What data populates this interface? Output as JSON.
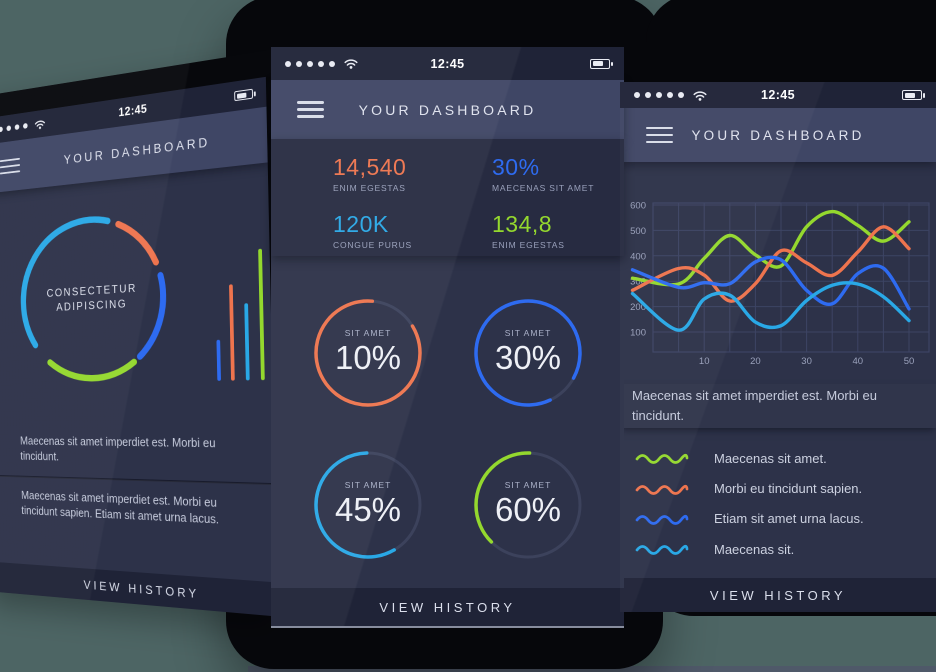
{
  "scene": {
    "description": "Three mobile dashboard app mockups on teal backdrop"
  },
  "colors": {
    "background_teal": "#4d6564",
    "floor_strip": "#4f5969",
    "phone_black": "#06070b",
    "screen_navy": "#2d3249",
    "bar_dark": "#1f2337",
    "header_slate": "#3f4665",
    "accent_orange": "#ee744e",
    "accent_blue": "#2e6bf0",
    "accent_cyan": "#29a8e6",
    "accent_green": "#94d82e"
  },
  "icons": {
    "status_bar": [
      "carrier-dots",
      "wifi-icon",
      "battery-icon"
    ],
    "nav": "hamburger-menu-icon",
    "legend_swatch": "wavy-line"
  },
  "left_phone": {
    "status": {
      "time": "12:45"
    },
    "header": {
      "title": "YOUR DASHBOARD"
    },
    "donut": {
      "line1": "CONSECTETUR",
      "line2": "ADIPISCING",
      "segments": [
        {
          "color": "#29a8e6",
          "start": 146,
          "end": 285
        },
        {
          "color": "#ee744e",
          "start": 294,
          "end": 336
        },
        {
          "color": "#2e6bf0",
          "start": 346,
          "end": 408
        },
        {
          "color": "#94d82e",
          "start": 414,
          "end": 488
        }
      ]
    },
    "bars": [
      {
        "color": "#2e6bf0",
        "height": 42
      },
      {
        "color": "#ee744e",
        "height": 98
      },
      {
        "color": "#29a8e6",
        "height": 78
      },
      {
        "color": "#94d82e",
        "height": 132
      }
    ],
    "paragraphs": [
      "Maecenas sit amet imperdiet est. Morbi eu tincidunt.",
      "Maecenas sit amet imperdiet est. Morbi eu tincidunt sapien. Etiam sit amet urna lacus."
    ],
    "footer": "VIEW HISTORY"
  },
  "center_phone": {
    "status": {
      "time": "12:45"
    },
    "header": {
      "title": "YOUR DASHBOARD"
    },
    "stats": [
      {
        "value": "14,540",
        "label": "ENIM EGESTAS",
        "color": "#ee744e"
      },
      {
        "value": "30%",
        "label": "MAECENAS SIT AMET",
        "color": "#2e6bf0"
      },
      {
        "value": "120K",
        "label": "CONGUE PURUS",
        "color": "#29a8e6"
      },
      {
        "value": "134,8",
        "label": "ENIM EGESTAS",
        "color": "#94d82e"
      }
    ],
    "rings": [
      {
        "label": "SIT AMET",
        "value": "10%",
        "color": "#ee744e",
        "arc_pct": 85,
        "rotate_deg": -31
      },
      {
        "label": "SIT AMET",
        "value": "30%",
        "color": "#2e6bf0",
        "arc_pct": 90,
        "rotate_deg": 65
      },
      {
        "label": "SIT AMET",
        "value": "45%",
        "color": "#29a8e6",
        "arc_pct": 58,
        "rotate_deg": 60
      },
      {
        "label": "SIT AMET",
        "value": "60%",
        "color": "#94d82e",
        "arc_pct": 38,
        "rotate_deg": 135
      }
    ],
    "footer": "VIEW HISTORY"
  },
  "right_phone": {
    "status": {
      "time": "12:45"
    },
    "header": {
      "title": "YOUR DASHBOARD"
    },
    "chart_data": {
      "type": "line",
      "x": [
        -4,
        5,
        10,
        15,
        20,
        25,
        30,
        35,
        40,
        45,
        50
      ],
      "series": [
        {
          "name": "Maecenas sit amet.",
          "color": "#94d82e",
          "values": [
            312,
            289,
            390,
            480,
            404,
            360,
            514,
            574,
            520,
            458,
            534
          ]
        },
        {
          "name": "Morbi eu tincidunt sapien.",
          "color": "#ee744e",
          "values": [
            264,
            350,
            324,
            222,
            290,
            420,
            372,
            323,
            415,
            514,
            428
          ]
        },
        {
          "name": "Etiam sit amet urna lacus.",
          "color": "#2e6bf0",
          "values": [
            345,
            276,
            294,
            290,
            376,
            384,
            264,
            211,
            330,
            351,
            191
          ]
        },
        {
          "name": "Maecenas sit.",
          "color": "#29a8e6",
          "values": [
            251,
            107,
            230,
            245,
            139,
            125,
            224,
            284,
            289,
            239,
            145
          ]
        }
      ],
      "yticks": [
        100,
        200,
        300,
        400,
        500,
        600
      ],
      "xticks": [
        10,
        20,
        30,
        40,
        50
      ],
      "ylim": [
        0,
        620
      ],
      "grid": true,
      "legend_position": "below"
    },
    "description": "Maecenas sit amet imperdiet est. Morbi eu tincidunt.",
    "footer": "VIEW HISTORY"
  }
}
